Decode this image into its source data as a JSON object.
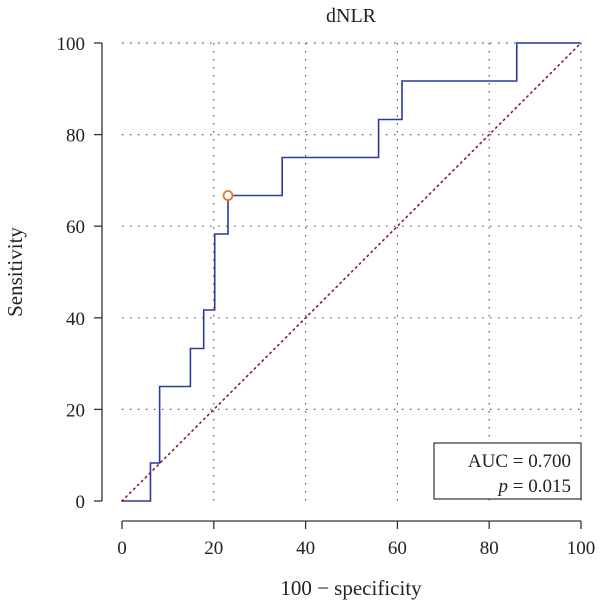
{
  "chart_data": {
    "type": "line",
    "title": "dNLR",
    "xlabel": "100 − specificity",
    "ylabel": "Sensitivity",
    "xlim": [
      0,
      100
    ],
    "ylim": [
      0,
      100
    ],
    "xticks": [
      "0",
      "20",
      "40",
      "60",
      "80",
      "100"
    ],
    "yticks": [
      "0",
      "20",
      "40",
      "60",
      "80",
      "100"
    ],
    "grid": true,
    "series": [
      {
        "curve": "roc",
        "x": [
          0,
          6.2,
          6.2,
          8.2,
          8.2,
          14.9,
          14.9,
          17.8,
          17.8,
          20.2,
          20.2,
          23.1,
          23.1,
          34.9,
          34.9,
          55.9,
          55.9,
          61.0,
          61.0,
          86.0,
          86.0,
          100
        ],
        "y": [
          0,
          0,
          8.3,
          8.3,
          25.0,
          25.0,
          33.3,
          33.3,
          41.7,
          41.7,
          58.3,
          58.3,
          66.7,
          66.7,
          75.0,
          75.0,
          83.3,
          83.3,
          91.7,
          91.7,
          100,
          100
        ],
        "color": "#2b3a9c"
      },
      {
        "curve": "reference",
        "x": [
          0,
          100
        ],
        "y": [
          0,
          100
        ],
        "color": "#8b1a2a",
        "style": "dotted"
      }
    ],
    "highlight_point": {
      "x": 23.1,
      "y": 66.7,
      "color": "#e8772e"
    },
    "annotations": {
      "auc_label": "AUC = 0.700",
      "p_symbol": "p",
      "p_rest": " = 0.015"
    }
  }
}
